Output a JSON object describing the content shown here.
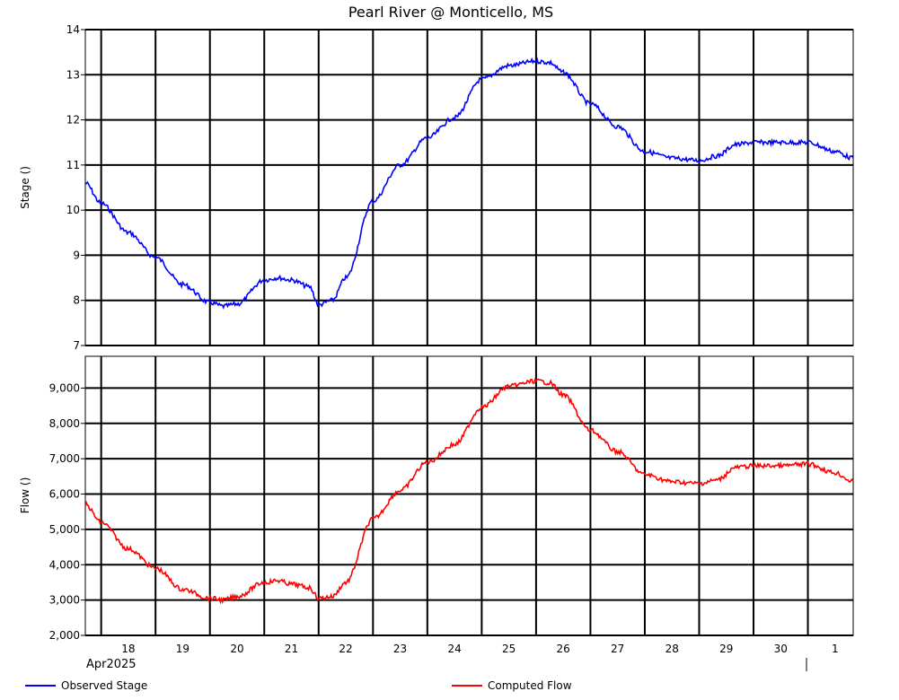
{
  "chart_data": {
    "title": "Pearl River @ Monticello, MS",
    "x_axis": {
      "type": "date",
      "month_label": "Apr2025",
      "range": [
        "2025-04-17T17:00",
        "2025-05-01T20:00"
      ],
      "ticks": [
        {
          "date": "2025-04-18",
          "label": "18"
        },
        {
          "date": "2025-04-19",
          "label": "19"
        },
        {
          "date": "2025-04-20",
          "label": "20"
        },
        {
          "date": "2025-04-21",
          "label": "21"
        },
        {
          "date": "2025-04-22",
          "label": "22"
        },
        {
          "date": "2025-04-23",
          "label": "23"
        },
        {
          "date": "2025-04-24",
          "label": "24"
        },
        {
          "date": "2025-04-25",
          "label": "25"
        },
        {
          "date": "2025-04-26",
          "label": "26"
        },
        {
          "date": "2025-04-27",
          "label": "27"
        },
        {
          "date": "2025-04-28",
          "label": "28"
        },
        {
          "date": "2025-04-29",
          "label": "29"
        },
        {
          "date": "2025-04-30",
          "label": "30"
        },
        {
          "date": "2025-05-01",
          "label": "1"
        }
      ]
    },
    "panels": [
      {
        "type": "line",
        "ylabel": "Stage ()",
        "ylim": [
          7,
          14
        ],
        "yticks": [
          "7",
          "8",
          "9",
          "10",
          "11",
          "12",
          "13",
          "14"
        ],
        "grid": true,
        "series": [
          {
            "name": "Observed Stage",
            "color": "#0000ff",
            "points": [
              {
                "x": "2025-04-17T17:00",
                "y": 10.6
              },
              {
                "x": "2025-04-18T00:00",
                "y": 10.15
              },
              {
                "x": "2025-04-18T12:00",
                "y": 9.5
              },
              {
                "x": "2025-04-19T00:00",
                "y": 8.95
              },
              {
                "x": "2025-04-19T12:00",
                "y": 8.35
              },
              {
                "x": "2025-04-20T00:00",
                "y": 7.95
              },
              {
                "x": "2025-04-20T06:00",
                "y": 7.87
              },
              {
                "x": "2025-04-20T12:00",
                "y": 7.92
              },
              {
                "x": "2025-04-21T00:00",
                "y": 8.45
              },
              {
                "x": "2025-04-21T06:00",
                "y": 8.5
              },
              {
                "x": "2025-04-21T12:00",
                "y": 8.45
              },
              {
                "x": "2025-04-21T20:00",
                "y": 8.3
              },
              {
                "x": "2025-04-22T00:00",
                "y": 7.9
              },
              {
                "x": "2025-04-22T06:00",
                "y": 8.0
              },
              {
                "x": "2025-04-22T12:00",
                "y": 8.5
              },
              {
                "x": "2025-04-23T00:00",
                "y": 10.2
              },
              {
                "x": "2025-04-23T12:00",
                "y": 11.0
              },
              {
                "x": "2025-04-24T00:00",
                "y": 11.6
              },
              {
                "x": "2025-04-24T12:00",
                "y": 12.05
              },
              {
                "x": "2025-04-25T00:00",
                "y": 12.9
              },
              {
                "x": "2025-04-25T12:00",
                "y": 13.2
              },
              {
                "x": "2025-04-26T00:00",
                "y": 13.3
              },
              {
                "x": "2025-04-26T06:00",
                "y": 13.27
              },
              {
                "x": "2025-04-26T12:00",
                "y": 13.05
              },
              {
                "x": "2025-04-27T00:00",
                "y": 12.35
              },
              {
                "x": "2025-04-27T12:00",
                "y": 11.85
              },
              {
                "x": "2025-04-28T00:00",
                "y": 11.3
              },
              {
                "x": "2025-04-28T12:00",
                "y": 11.15
              },
              {
                "x": "2025-04-29T00:00",
                "y": 11.1
              },
              {
                "x": "2025-04-29T08:00",
                "y": 11.2
              },
              {
                "x": "2025-04-29T16:00",
                "y": 11.45
              },
              {
                "x": "2025-04-30T00:00",
                "y": 11.5
              },
              {
                "x": "2025-04-30T12:00",
                "y": 11.5
              },
              {
                "x": "2025-05-01T00:00",
                "y": 11.5
              },
              {
                "x": "2025-05-01T12:00",
                "y": 11.3
              },
              {
                "x": "2025-05-01T20:00",
                "y": 11.15
              }
            ]
          }
        ]
      },
      {
        "type": "line",
        "ylabel": "Flow ()",
        "ylim": [
          2000,
          9900
        ],
        "yticks": [
          "2,000",
          "3,000",
          "4,000",
          "5,000",
          "6,000",
          "7,000",
          "8,000",
          "9,000"
        ],
        "grid": true,
        "series": [
          {
            "name": "Computed Flow",
            "color": "#ff0000",
            "points": [
              {
                "x": "2025-04-17T17:00",
                "y": 5700
              },
              {
                "x": "2025-04-18T00:00",
                "y": 5200
              },
              {
                "x": "2025-04-18T12:00",
                "y": 4450
              },
              {
                "x": "2025-04-19T00:00",
                "y": 3900
              },
              {
                "x": "2025-04-19T12:00",
                "y": 3300
              },
              {
                "x": "2025-04-20T00:00",
                "y": 3050
              },
              {
                "x": "2025-04-20T06:00",
                "y": 3000
              },
              {
                "x": "2025-04-20T12:00",
                "y": 3100
              },
              {
                "x": "2025-04-21T00:00",
                "y": 3500
              },
              {
                "x": "2025-04-21T06:00",
                "y": 3550
              },
              {
                "x": "2025-04-21T12:00",
                "y": 3450
              },
              {
                "x": "2025-04-21T20:00",
                "y": 3350
              },
              {
                "x": "2025-04-22T00:00",
                "y": 3050
              },
              {
                "x": "2025-04-22T06:00",
                "y": 3100
              },
              {
                "x": "2025-04-22T12:00",
                "y": 3500
              },
              {
                "x": "2025-04-23T00:00",
                "y": 5300
              },
              {
                "x": "2025-04-23T12:00",
                "y": 6100
              },
              {
                "x": "2025-04-24T00:00",
                "y": 6900
              },
              {
                "x": "2025-04-24T12:00",
                "y": 7400
              },
              {
                "x": "2025-04-25T00:00",
                "y": 8450
              },
              {
                "x": "2025-04-25T12:00",
                "y": 9050
              },
              {
                "x": "2025-04-26T00:00",
                "y": 9200
              },
              {
                "x": "2025-04-26T06:00",
                "y": 9150
              },
              {
                "x": "2025-04-26T12:00",
                "y": 8800
              },
              {
                "x": "2025-04-27T00:00",
                "y": 7800
              },
              {
                "x": "2025-04-27T12:00",
                "y": 7200
              },
              {
                "x": "2025-04-28T00:00",
                "y": 6550
              },
              {
                "x": "2025-04-28T12:00",
                "y": 6350
              },
              {
                "x": "2025-04-29T00:00",
                "y": 6300
              },
              {
                "x": "2025-04-29T08:00",
                "y": 6400
              },
              {
                "x": "2025-04-29T16:00",
                "y": 6750
              },
              {
                "x": "2025-04-30T00:00",
                "y": 6800
              },
              {
                "x": "2025-04-30T12:00",
                "y": 6800
              },
              {
                "x": "2025-05-01T00:00",
                "y": 6850
              },
              {
                "x": "2025-05-01T12:00",
                "y": 6600
              },
              {
                "x": "2025-05-01T20:00",
                "y": 6350
              }
            ]
          }
        ]
      }
    ],
    "legend": {
      "placement": "bottom",
      "entries": [
        {
          "name": "Observed Stage",
          "color": "#0000ff"
        },
        {
          "name": "Computed Flow",
          "color": "#ff0000"
        }
      ]
    }
  }
}
